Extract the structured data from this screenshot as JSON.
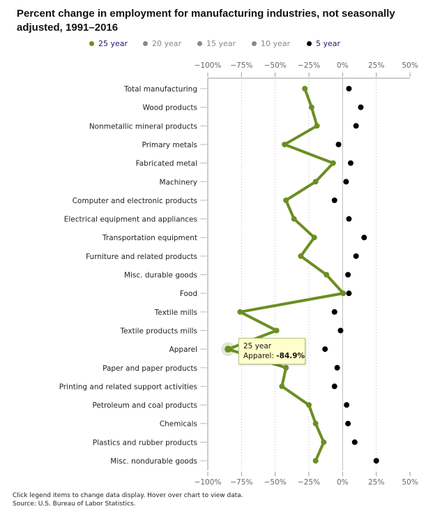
{
  "chart_data": {
    "type": "scatter",
    "title": "Percent change in employment for manufacturing industries, not seasonally adjusted, 1991–2016",
    "categories": [
      "Total manufacturing",
      "Wood products",
      "Nonmetallic mineral products",
      "Primary metals",
      "Fabricated metal",
      "Machinery",
      "Computer and electronic products",
      "Electrical equipment and appliances",
      "Transportation equipment",
      "Furniture and related products",
      "Misc. durable goods",
      "Food",
      "Textile mills",
      "Textile products mills",
      "Apparel",
      "Paper and paper products",
      "Printing and related support activities",
      "Petroleum and coal products",
      "Chemicals",
      "Plastics and rubber products",
      "Misc. nondurable goods"
    ],
    "xlim": [
      -100,
      50
    ],
    "xticks": [
      -100,
      -75,
      -50,
      -25,
      0,
      25,
      50
    ],
    "xtick_labels": [
      "−100%",
      "−75%",
      "−50%",
      "−25%",
      "0%",
      "25%",
      "50%"
    ],
    "grid": "vertical dotted",
    "legend_placement": "top",
    "legend": [
      {
        "name": "25 year",
        "color": "#6b8e23",
        "active": true
      },
      {
        "name": "20 year",
        "color": "#888888",
        "active": false
      },
      {
        "name": "15 year",
        "color": "#888888",
        "active": false
      },
      {
        "name": "10 year",
        "color": "#888888",
        "active": false
      },
      {
        "name": "5 year",
        "color": "#000000",
        "active": true
      }
    ],
    "series": [
      {
        "name": "25 year",
        "color": "#6b8e23",
        "style": "line-markers",
        "values": [
          -28,
          -23,
          -19,
          -43,
          -7,
          -20,
          -42,
          -36,
          -21,
          -31,
          -12,
          0.5,
          -76,
          -49,
          -84.9,
          -42,
          -45,
          -25,
          -20,
          -14,
          -20
        ]
      },
      {
        "name": "5 year",
        "color": "#000000",
        "style": "markers",
        "values": [
          4.7,
          13.5,
          10,
          -3,
          6,
          2.6,
          -6,
          4.7,
          16,
          10,
          4,
          4.7,
          -6,
          -1.5,
          -13,
          -4,
          -6,
          3,
          4,
          9,
          25
        ]
      }
    ]
  },
  "tooltip": {
    "series": "25 year",
    "label": "Apparel:",
    "value": "-84.9%"
  },
  "notes": {
    "line1": "Click legend items to change data display. Hover over chart to view data.",
    "line2": "Source: U.S. Bureau of Labor Statistics."
  }
}
